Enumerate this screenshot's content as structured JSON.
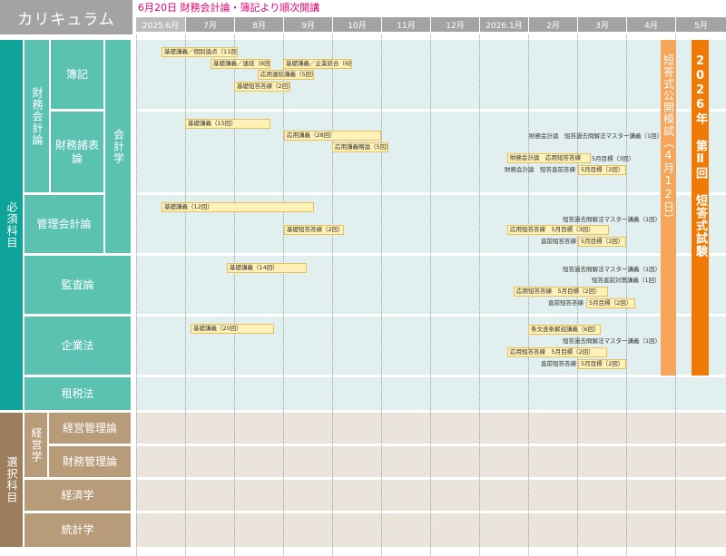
{
  "header": {
    "title": "カリキュラム",
    "notice": "6月20日 財務会計論・簿記より順次開講"
  },
  "months": [
    "2025.6月",
    "7月",
    "8月",
    "9月",
    "10月",
    "11月",
    "12月",
    "2026.1月",
    "2月",
    "3月",
    "4月",
    "5月"
  ],
  "categories": {
    "required": "必須科目",
    "elective": "選択科目",
    "financial_accounting": "財務会計論",
    "accounting_studies": "会計学",
    "management_studies": "経営学"
  },
  "subjects": {
    "bookkeeping": "簿記",
    "fin_statements": "財務諸表論",
    "mgmt_accounting": "管理会計論",
    "auditing": "監査論",
    "corporate_law": "企業法",
    "tax_law": "租税法",
    "business_mgmt": "経営管理論",
    "fin_mgmt": "財務管理論",
    "economics": "経済学",
    "statistics": "統計学"
  },
  "courses": {
    "bk1": "基礎講義／個別論点（11回）",
    "bk2": "基礎講義／連結（8回）",
    "bk3": "基礎講義／企業結合（6回）",
    "bk4": "応用連結講義（5回）",
    "bk5": "基礎短答答練（2回）",
    "fs1": "基礎講義（15回）",
    "fs2": "応用講義（28回）",
    "fs3": "応用講義略論（5回）",
    "fs_note1": "財務会計論　短答過去問解法マスター講義（1回）",
    "fs_cell1": "財務会計論　応用短答答練",
    "fs_note2": "5月目標（3回）",
    "fs_note3": "財務会計論　短答直前答練",
    "fs_cell2": "5月目標（2回）",
    "ma1": "基礎講義（12回）",
    "ma2": "基礎短答答練（2回）",
    "ma_note1": "短答過去問解法マスター講義（1回）",
    "ma_cell1": "応用短答答練　5月目標（3回）",
    "ma_note2": "直前短答答練",
    "ma_cell2": "5月目標（2回）",
    "au1": "基礎講義（14回）",
    "au_note1": "短答過去問解法マスター講義（1回）",
    "au_note2": "短答直前対策講義（1回）",
    "au_cell1": "応用短答答練　5月目標（2回）",
    "au_note3": "直前短答答練",
    "au_cell2": "5月目標（2回）",
    "cl1": "基礎講義（20回）",
    "cl_cell1": "条文逐条解説講義（6回）",
    "cl_note1": "短答過去問解法マスター講義（1回）",
    "cl_cell2": "応用短答答練　5月目標（2回）",
    "cl_note2": "直前短答答練",
    "cl_cell3": "5月目標（2回）"
  },
  "mock_exam": "短答式公開模試（4月12日）",
  "final_exam": "2026年 第Ⅱ回 短答式試験",
  "colors": {
    "required": "#5bc2b2",
    "elective": "#b89c7a",
    "mock": "#f5a65b",
    "exam": "#ef7a05",
    "notice": "#e6006e"
  }
}
